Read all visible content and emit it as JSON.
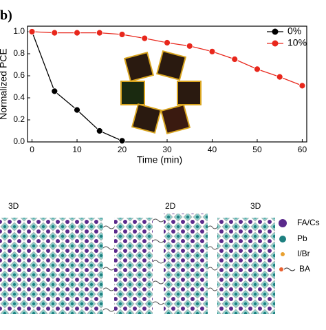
{
  "chart_data": {
    "type": "line",
    "panel_label": "b)",
    "x_label": "Time (min)",
    "y_label": "Normalized PCE",
    "xlim": [
      -1,
      61
    ],
    "xticks": [
      0,
      10,
      20,
      30,
      40,
      50,
      60
    ],
    "ylim": [
      0,
      1.05
    ],
    "yticks": [
      {
        "value": 0,
        "label": "0.0"
      },
      {
        "value": 0.2,
        "label": "0.2"
      },
      {
        "value": 0.4,
        "label": "0.4"
      },
      {
        "value": 0.6,
        "label": "0.6"
      },
      {
        "value": 0.8,
        "label": "0.8"
      },
      {
        "value": 1,
        "label": "1.0"
      }
    ],
    "legend": "upper right",
    "series": [
      {
        "name": "0%",
        "color": "#000000",
        "x": [
          0,
          5,
          10,
          15,
          20
        ],
        "values": [
          1.0,
          0.46,
          0.29,
          0.1,
          0.01
        ]
      },
      {
        "name": "10%",
        "color": "#e8271c",
        "x": [
          0,
          5,
          10,
          15,
          20,
          25,
          30,
          35,
          40,
          45,
          50,
          55,
          60
        ],
        "values": [
          1.0,
          0.99,
          0.99,
          0.99,
          0.975,
          0.94,
          0.9,
          0.87,
          0.82,
          0.75,
          0.66,
          0.59,
          0.51
        ]
      }
    ]
  },
  "schematic": {
    "region_labels": [
      "3D",
      "2D",
      "3D"
    ],
    "legend": [
      "FA/Cs",
      "Pb",
      "I/Br",
      "BA"
    ]
  }
}
